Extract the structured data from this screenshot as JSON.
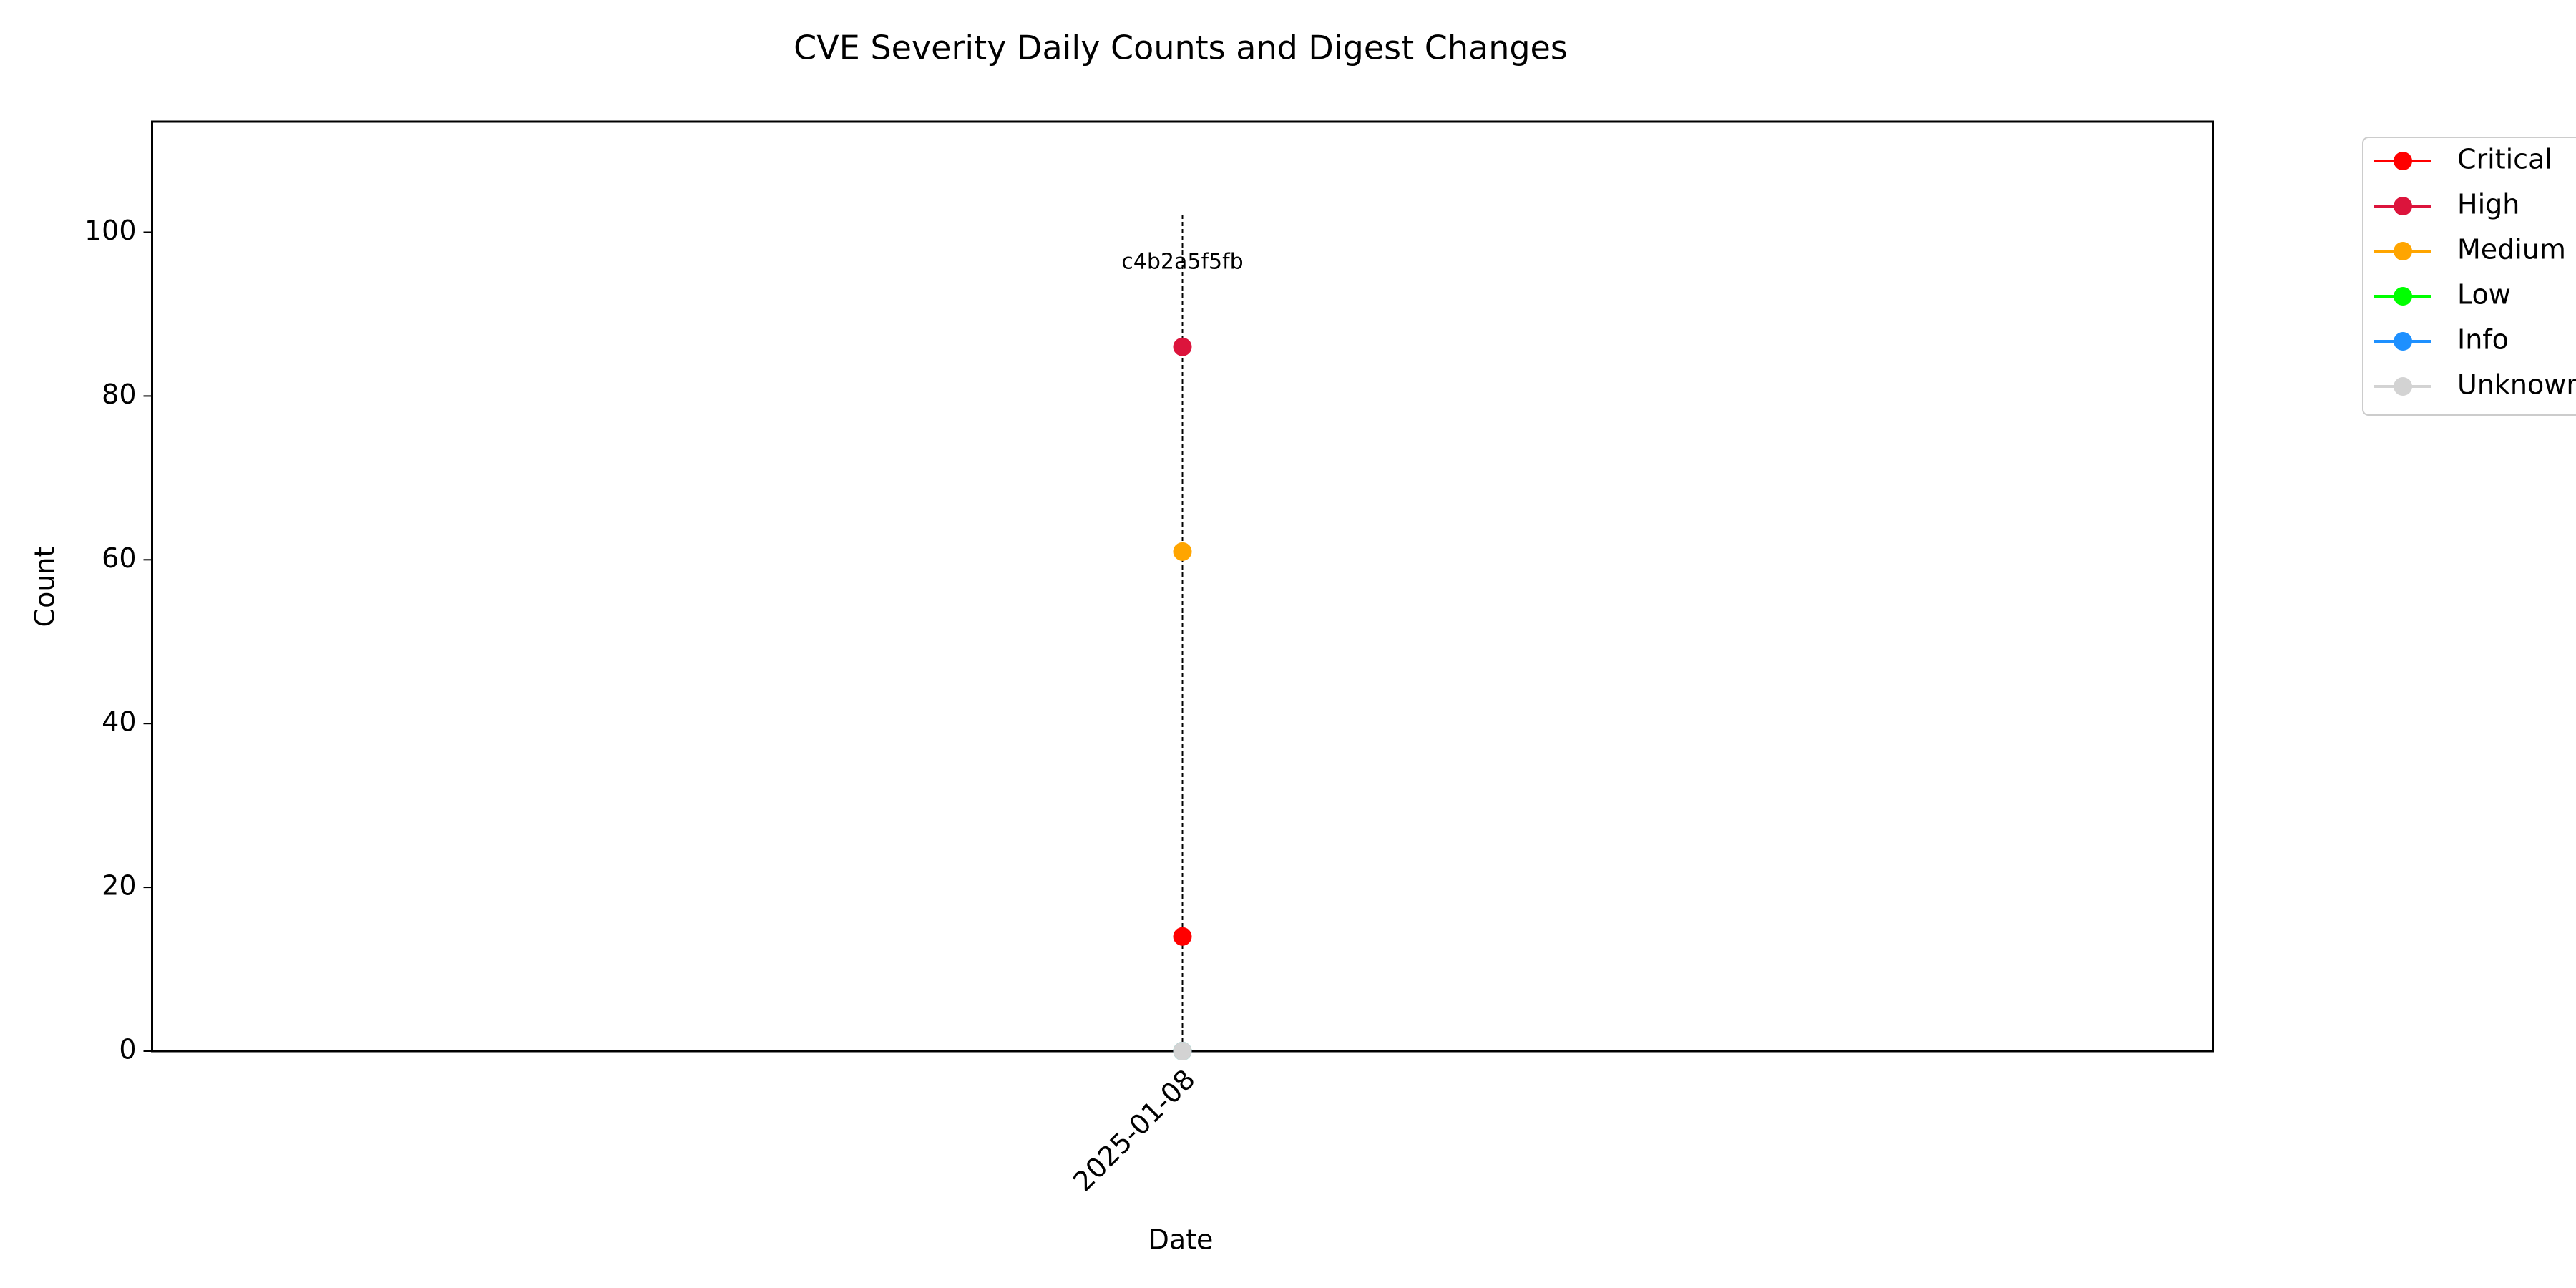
{
  "chart_data": {
    "type": "line",
    "title": "CVE Severity Daily Counts and Digest Changes",
    "xlabel": "Date",
    "ylabel": "Count",
    "x": [
      "2025-01-08"
    ],
    "ylim": [
      0,
      113.5
    ],
    "yticks": [
      0,
      20,
      40,
      60,
      80,
      100
    ],
    "grid": false,
    "legend_position": "outside top-right",
    "series": [
      {
        "name": "Critical",
        "color": "#ff0000",
        "values": [
          14
        ]
      },
      {
        "name": "High",
        "color": "#dc143c",
        "values": [
          86
        ]
      },
      {
        "name": "Medium",
        "color": "#ffa500",
        "values": [
          61
        ]
      },
      {
        "name": "Low",
        "color": "#00ff00",
        "values": [
          0
        ]
      },
      {
        "name": "Info",
        "color": "#1e90ff",
        "values": [
          0
        ]
      },
      {
        "name": "Unknown",
        "color": "#d3d3d3",
        "values": [
          0
        ]
      }
    ],
    "annotations": [
      {
        "x": "2025-01-08",
        "text": "c4b2a5f5fb",
        "style": "dashed vertical line"
      }
    ]
  }
}
